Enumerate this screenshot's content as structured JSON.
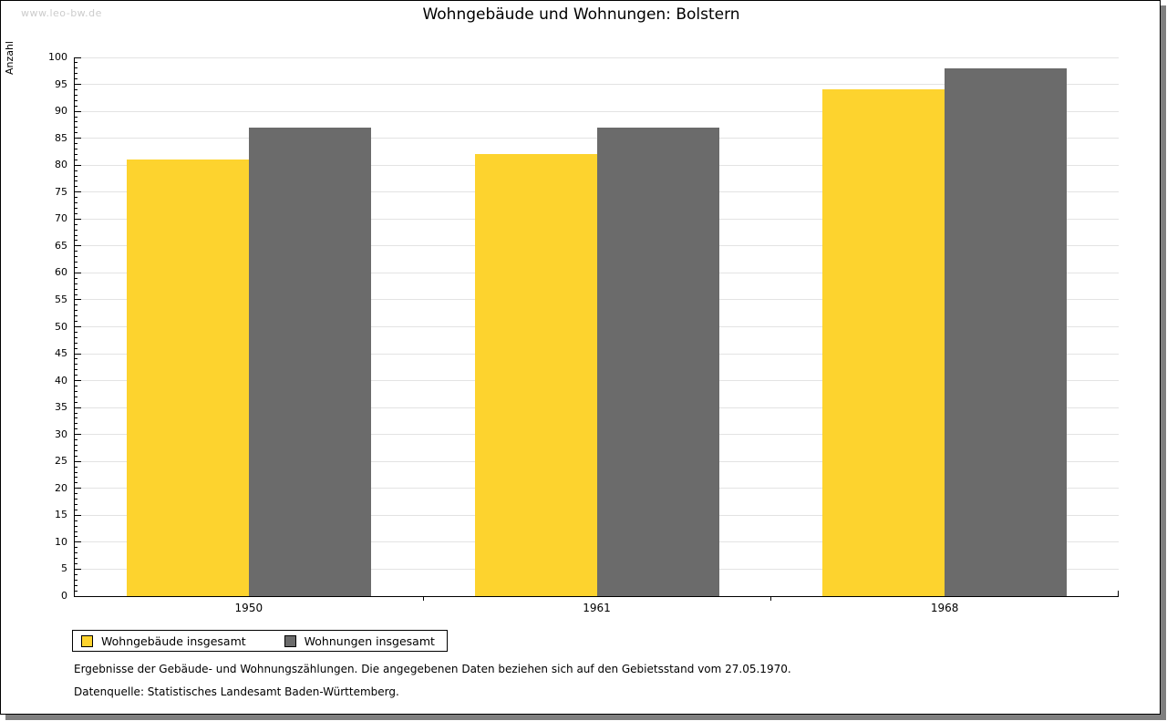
{
  "watermark": "www.leo-bw.de",
  "title": "Wohngebäude und Wohnungen: Bolstern",
  "chart_data": {
    "type": "bar",
    "title": "Wohngebäude und Wohnungen: Bolstern",
    "xlabel": "",
    "ylabel": "Anzahl",
    "categories": [
      "1950",
      "1961",
      "1968"
    ],
    "series": [
      {
        "name": "Wohngebäude insgesamt",
        "color": "#fdd32e",
        "values": [
          81,
          82,
          94
        ]
      },
      {
        "name": "Wohnungen insgesamt",
        "color": "#6b6b6b",
        "values": [
          87,
          87,
          98
        ]
      }
    ],
    "ylim": [
      0,
      100
    ],
    "y_major_step": 5,
    "y_minor_step": 1,
    "grid": true,
    "gridline_color": "#e3e3e3",
    "legend_position": "bottom-left"
  },
  "legend": {
    "items": [
      {
        "label": "Wohngebäude insgesamt",
        "color": "#fdd32e"
      },
      {
        "label": "Wohnungen insgesamt",
        "color": "#6b6b6b"
      }
    ]
  },
  "footnotes": {
    "line1": "Ergebnisse der Gebäude- und Wohnungszählungen. Die angegebenen Daten beziehen sich auf den Gebietsstand vom 27.05.1970.",
    "line2": "Datenquelle: Statistisches Landesamt Baden-Württemberg."
  },
  "colors": {
    "frame_shadow": "#7f7f7f",
    "watermark": "#cccccc",
    "axis": "#000000"
  }
}
